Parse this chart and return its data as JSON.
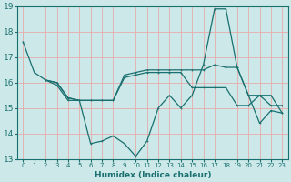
{
  "xlabel": "Humidex (Indice chaleur)",
  "bg_color": "#cce8e8",
  "grid_color": "#e8aaaa",
  "line_color": "#1a7070",
  "xlim": [
    -0.5,
    23.5
  ],
  "ylim": [
    13,
    19
  ],
  "yticks": [
    13,
    14,
    15,
    16,
    17,
    18,
    19
  ],
  "xticks": [
    0,
    1,
    2,
    3,
    4,
    5,
    6,
    7,
    8,
    9,
    10,
    11,
    12,
    13,
    14,
    15,
    16,
    17,
    18,
    19,
    20,
    21,
    22,
    23
  ],
  "lines": [
    {
      "x": [
        0,
        1,
        2,
        3,
        4,
        5,
        6,
        7,
        8,
        9,
        10,
        11,
        12,
        13,
        14,
        15,
        16,
        17,
        18,
        19,
        20,
        21,
        22,
        23
      ],
      "y": [
        17.6,
        16.4,
        16.1,
        15.9,
        15.3,
        15.3,
        13.6,
        13.7,
        13.9,
        13.6,
        13.1,
        13.7,
        15.0,
        15.5,
        15.0,
        15.5,
        16.7,
        18.9,
        18.9,
        16.6,
        15.5,
        14.4,
        14.9,
        14.8
      ]
    },
    {
      "x": [
        2,
        3,
        4,
        5,
        6,
        7,
        8,
        9,
        10,
        11,
        12,
        13,
        14,
        15,
        16,
        17,
        18,
        19,
        20,
        21,
        22,
        23
      ],
      "y": [
        16.1,
        16.0,
        15.4,
        15.3,
        15.3,
        15.3,
        15.3,
        16.3,
        16.4,
        16.5,
        16.5,
        16.5,
        16.5,
        16.5,
        16.5,
        16.7,
        16.6,
        16.6,
        15.5,
        15.5,
        15.5,
        14.8
      ]
    },
    {
      "x": [
        2,
        3,
        4,
        5,
        6,
        7,
        8,
        9,
        10,
        11,
        12,
        13,
        14,
        15,
        16,
        17,
        18,
        19,
        20,
        21,
        22,
        23
      ],
      "y": [
        16.1,
        16.0,
        15.4,
        15.3,
        15.3,
        15.3,
        15.3,
        16.2,
        16.3,
        16.4,
        16.4,
        16.4,
        16.4,
        15.8,
        15.8,
        15.8,
        15.8,
        15.1,
        15.1,
        15.5,
        15.1,
        15.1
      ]
    }
  ]
}
